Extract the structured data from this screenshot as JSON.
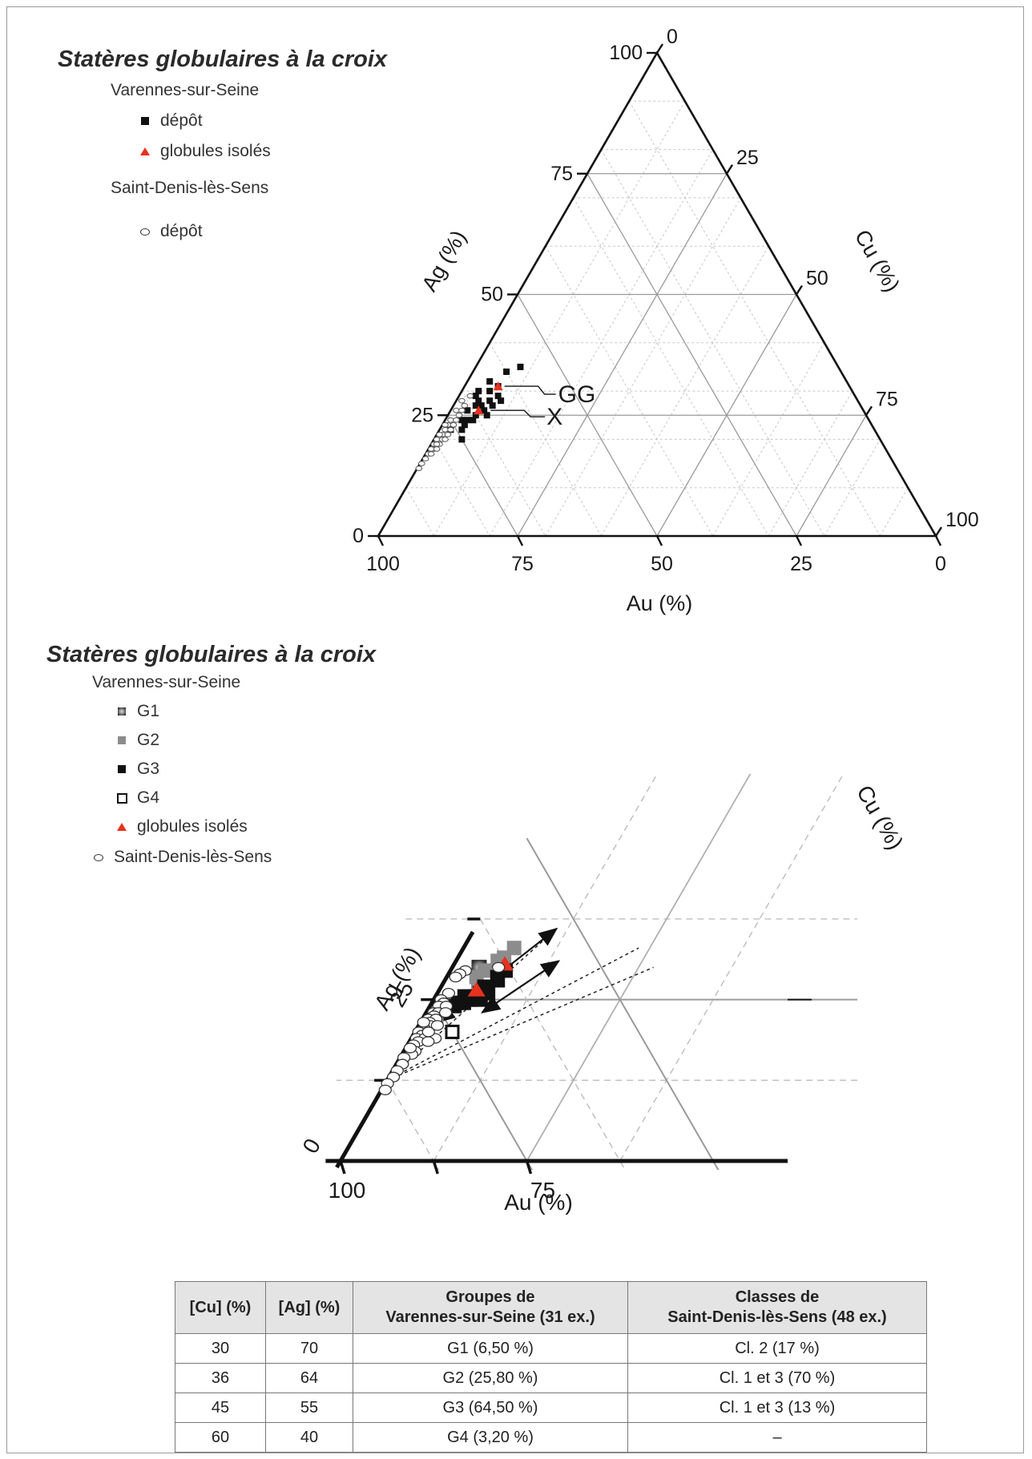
{
  "top": {
    "legend": {
      "title": "Statères globulaires à la croix",
      "site1": "Varennes-sur-Seine",
      "depot": "dépôt",
      "isolated": "globules isolés",
      "site2": "Saint-Denis-lès-Sens",
      "depot2": "dépôt"
    },
    "ticks_au": [
      "100",
      "75",
      "50",
      "25",
      "0"
    ],
    "ticks_ag": [
      "0",
      "25",
      "50",
      "75",
      "100"
    ],
    "ticks_cu": [
      "0",
      "25",
      "50",
      "75",
      "100"
    ],
    "label_au": "Au (%)",
    "label_ag": "Ag (%)",
    "label_cu": "Cu (%)",
    "annotations": [
      "GG",
      "X"
    ]
  },
  "bottom": {
    "legend": {
      "title": "Statères globulaires à la croix",
      "site1": "Varennes-sur-Seine",
      "g1": "G1",
      "g2": "G2",
      "g3": "G3",
      "g4": "G4",
      "isolated": "globules isolés",
      "site2": "Saint-Denis-lès-Sens"
    },
    "label_au": "Au (%)",
    "label_ag": "Ag (%)",
    "label_cu": "Cu (%)",
    "ticks_au": [
      "100",
      "75"
    ],
    "ticks_ag": [
      "0",
      "25"
    ]
  },
  "colors": {
    "red": "#e8321e",
    "grey": "#8c8c8c",
    "black": "#111111"
  },
  "table": {
    "headers": [
      "[Cu] (%)",
      "[Ag] (%)",
      "Groupes de Varennes-sur-Seine (31 ex.)",
      "Classes de Saint-Denis-lès-Sens (48 ex.)"
    ],
    "rows": [
      [
        "30",
        "70",
        "G1 (6,50 %)",
        "Cl. 2 (17 %)"
      ],
      [
        "36",
        "64",
        "G2 (25,80 %)",
        "Cl. 1 et 3 (70 %)"
      ],
      [
        "45",
        "55",
        "G3 (64,50 %)",
        "Cl. 1 et 3 (13 %)"
      ],
      [
        "60",
        "40",
        "G4 (3,20 %)",
        "–"
      ]
    ]
  },
  "chart_data": [
    {
      "type": "scatter",
      "coordinate_system": "ternary",
      "xlabel": "Au (%)",
      "ylabel": "Ag (%)",
      "zlabel": "Cu (%)",
      "axis_range": [
        0,
        100
      ],
      "grid": true,
      "legend_placement": "top-left",
      "series": [
        {
          "name": "dépôt",
          "site": "Varennes-sur-Seine",
          "marker": "square",
          "color": "#111111",
          "points": [
            {
              "ag": 35,
              "cu": 8
            },
            {
              "ag": 34,
              "cu": 6
            },
            {
              "ag": 32,
              "cu": 4
            },
            {
              "ag": 30,
              "cu": 3
            },
            {
              "ag": 29,
              "cu": 3
            },
            {
              "ag": 31,
              "cu": 6
            },
            {
              "ag": 30,
              "cu": 5
            },
            {
              "ag": 28,
              "cu": 6
            },
            {
              "ag": 28,
              "cu": 8
            },
            {
              "ag": 27,
              "cu": 4
            },
            {
              "ag": 27,
              "cu": 7
            },
            {
              "ag": 26,
              "cu": 3
            },
            {
              "ag": 26,
              "cu": 6
            },
            {
              "ag": 25,
              "cu": 5
            },
            {
              "ag": 25,
              "cu": 7
            },
            {
              "ag": 24,
              "cu": 3
            },
            {
              "ag": 24,
              "cu": 4
            },
            {
              "ag": 24,
              "cu": 5
            },
            {
              "ag": 23,
              "cu": 4
            },
            {
              "ag": 22,
              "cu": 4
            },
            {
              "ag": 22,
              "cu": 2
            },
            {
              "ag": 20,
              "cu": 5
            },
            {
              "ag": 29,
              "cu": 7
            },
            {
              "ag": 27,
              "cu": 5
            },
            {
              "ag": 28,
              "cu": 4
            }
          ]
        },
        {
          "name": "globules isolés",
          "site": "Varennes-sur-Seine",
          "marker": "triangle",
          "color": "#e8321e",
          "points": [
            {
              "ag": 31,
              "cu": 6
            },
            {
              "ag": 26,
              "cu": 5
            }
          ]
        },
        {
          "name": "dépôt",
          "site": "Saint-Denis-lès-Sens",
          "marker": "ellipse",
          "color": "#555555",
          "points": [
            {
              "ag": 29,
              "cu": 2
            },
            {
              "ag": 28,
              "cu": 1
            },
            {
              "ag": 27,
              "cu": 2
            },
            {
              "ag": 26,
              "cu": 1
            },
            {
              "ag": 25,
              "cu": 2
            },
            {
              "ag": 24,
              "cu": 1
            },
            {
              "ag": 23,
              "cu": 1
            },
            {
              "ag": 23,
              "cu": 2
            },
            {
              "ag": 22,
              "cu": 1
            },
            {
              "ag": 21,
              "cu": 1
            },
            {
              "ag": 21,
              "cu": 2
            },
            {
              "ag": 20,
              "cu": 0.5
            },
            {
              "ag": 20,
              "cu": 1.5
            },
            {
              "ag": 19,
              "cu": 0.5
            },
            {
              "ag": 19,
              "cu": 1.5
            },
            {
              "ag": 18,
              "cu": 1
            },
            {
              "ag": 18,
              "cu": 0.5
            },
            {
              "ag": 17,
              "cu": 0.5
            },
            {
              "ag": 16,
              "cu": 0.5
            },
            {
              "ag": 15,
              "cu": 0.3
            },
            {
              "ag": 14,
              "cu": 0.3
            },
            {
              "ag": 22,
              "cu": 2
            },
            {
              "ag": 24,
              "cu": 2
            },
            {
              "ag": 20,
              "cu": 2
            },
            {
              "ag": 18,
              "cu": 1.5
            },
            {
              "ag": 26,
              "cu": 2
            },
            {
              "ag": 21,
              "cu": 0.5
            },
            {
              "ag": 19,
              "cu": 1
            },
            {
              "ag": 17,
              "cu": 1
            },
            {
              "ag": 23,
              "cu": 0.5
            }
          ]
        }
      ],
      "annotations": [
        "GG",
        "X"
      ]
    },
    {
      "type": "scatter",
      "coordinate_system": "ternary",
      "zoom": "Au 70–100 %, Ag 0–34 %",
      "xlabel": "Au (%)",
      "ylabel": "Ag (%)",
      "zlabel": "Cu (%)",
      "legend_placement": "top-left",
      "series": [
        {
          "name": "G1",
          "marker": "square-gradient",
          "color": "#555555",
          "points": [
            {
              "ag": 30,
              "cu": 3.6
            }
          ]
        },
        {
          "name": "G2",
          "marker": "square",
          "color": "#8c8c8c",
          "points": [
            {
              "ag": 33,
              "cu": 6.8
            },
            {
              "ag": 31.5,
              "cu": 6.2
            },
            {
              "ag": 31,
              "cu": 5.6
            },
            {
              "ag": 29.5,
              "cu": 4.6
            },
            {
              "ag": 28.5,
              "cu": 4
            },
            {
              "ag": 22.5,
              "cu": 1.6
            },
            {
              "ag": 27,
              "cu": 5
            }
          ]
        },
        {
          "name": "G3",
          "marker": "square",
          "color": "#111111",
          "points": [
            {
              "ag": 29.5,
              "cu": 7.4
            },
            {
              "ag": 28.5,
              "cu": 6.8
            },
            {
              "ag": 28,
              "cu": 7.1
            },
            {
              "ag": 27,
              "cu": 5.8
            },
            {
              "ag": 26.5,
              "cu": 6.2
            },
            {
              "ag": 26,
              "cu": 5.7
            },
            {
              "ag": 25.5,
              "cu": 5.3
            },
            {
              "ag": 25,
              "cu": 5
            },
            {
              "ag": 25,
              "cu": 4.5
            },
            {
              "ag": 24.5,
              "cu": 4.3
            },
            {
              "ag": 25.5,
              "cu": 3.9
            },
            {
              "ag": 24.5,
              "cu": 3.5
            },
            {
              "ag": 24,
              "cu": 3.3
            },
            {
              "ag": 26,
              "cu": 6.8
            },
            {
              "ag": 25,
              "cu": 6.3
            }
          ]
        },
        {
          "name": "G4",
          "marker": "square-open",
          "color": "#111111",
          "points": [
            {
              "ag": 20,
              "cu": 5
            }
          ]
        },
        {
          "name": "globules isolés",
          "marker": "triangle",
          "color": "#e8321e",
          "points": [
            {
              "ag": 30.5,
              "cu": 6.8
            },
            {
              "ag": 26.5,
              "cu": 5
            }
          ]
        },
        {
          "name": "Saint-Denis-lès-Sens",
          "marker": "ellipse",
          "color": "#333333",
          "points": [
            {
              "ag": 29.5,
              "cu": 2
            },
            {
              "ag": 29,
              "cu": 1.5
            },
            {
              "ag": 28.5,
              "cu": 1.2
            },
            {
              "ag": 26,
              "cu": 1.5
            },
            {
              "ag": 25,
              "cu": 1
            },
            {
              "ag": 24.5,
              "cu": 1.6
            },
            {
              "ag": 24,
              "cu": 1.2
            },
            {
              "ag": 24,
              "cu": 2.2
            },
            {
              "ag": 23,
              "cu": 1
            },
            {
              "ag": 23,
              "cu": 1.6
            },
            {
              "ag": 22.5,
              "cu": 1.3
            },
            {
              "ag": 22,
              "cu": 0.8
            },
            {
              "ag": 22,
              "cu": 1.8
            },
            {
              "ag": 21.5,
              "cu": 1.2
            },
            {
              "ag": 21,
              "cu": 1.5
            },
            {
              "ag": 20.5,
              "cu": 1
            },
            {
              "ag": 20,
              "cu": 0.5
            },
            {
              "ag": 19.5,
              "cu": 1.2
            },
            {
              "ag": 19,
              "cu": 0.7
            },
            {
              "ag": 19,
              "cu": 1.8
            },
            {
              "ag": 18.5,
              "cu": 1.2
            },
            {
              "ag": 18,
              "cu": 0.8
            },
            {
              "ag": 17,
              "cu": 1.5
            },
            {
              "ag": 16.5,
              "cu": 1.3
            },
            {
              "ag": 16,
              "cu": 0.5
            },
            {
              "ag": 15,
              "cu": 0.8
            },
            {
              "ag": 14,
              "cu": 0.6
            },
            {
              "ag": 13,
              "cu": 0.6
            },
            {
              "ag": 12,
              "cu": 0.3
            },
            {
              "ag": 11,
              "cu": 0.5
            },
            {
              "ag": 21,
              "cu": 2.5
            },
            {
              "ag": 19,
              "cu": 3.2
            },
            {
              "ag": 18.5,
              "cu": 2.5
            },
            {
              "ag": 23,
              "cu": 2.6
            },
            {
              "ag": 30,
              "cu": 6.2
            },
            {
              "ag": 20,
              "cu": 1.8
            },
            {
              "ag": 21.5,
              "cu": 0.4
            },
            {
              "ag": 17.5,
              "cu": 0.6
            }
          ]
        }
      ]
    }
  ]
}
